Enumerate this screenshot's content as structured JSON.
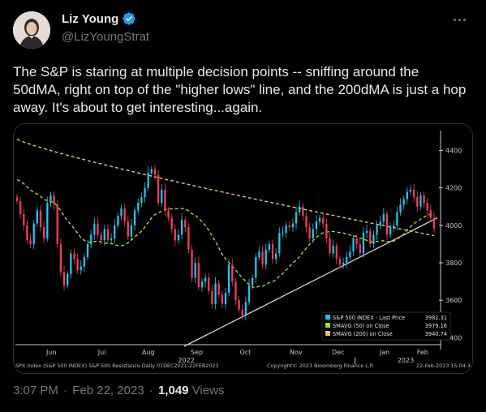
{
  "author": {
    "name": "Liz Young",
    "handle": "@LizYoungStrat"
  },
  "tweet": {
    "text": "The S&P is staring at multiple decision points -- sniffing around the 50dMA, right on top of the \"higher lows\" line, and the 200dMA is just a hop away. It's about to get interesting...again."
  },
  "meta": {
    "time": "3:07 PM",
    "separator": "·",
    "date": "Feb 22, 2023",
    "views_count": "1,049",
    "views_label": "Views"
  },
  "chart_data": {
    "type": "line",
    "x_tick_labels": [
      "Jun",
      "Jul",
      "Aug",
      "Sep",
      "Oct",
      "Nov",
      "Dec",
      "Jan",
      "Feb"
    ],
    "x_year_labels": [
      "2022",
      "2023"
    ],
    "y_tick_labels": [
      "4400",
      "4200",
      "4000",
      "3800",
      "3600",
      "3400"
    ],
    "ylim": [
      3380,
      4480
    ],
    "legend": {
      "rows": [
        {
          "label": "S&P 500 INDEX - Last Price",
          "value": "3982.31",
          "color": "#1ec8f0"
        },
        {
          "label": "SMAVG (50)  on Close",
          "value": "3979.16",
          "color": "#9be02a"
        },
        {
          "label": "SMAVG (200)  on Close",
          "value": "3940.74",
          "color": "#e8c56a"
        }
      ]
    },
    "footer": {
      "left": "SPX Index (S&P 500 INDEX) S&P 500 Resistance  Daily 01DEC2021-22FEB2023",
      "center": "Copyright© 2023 Bloomberg Finance L.P.",
      "right": "22-Feb-2023 15:04:3"
    },
    "series_close": [
      4130,
      4060,
      4000,
      3920,
      3900,
      4010,
      4080,
      3990,
      3930,
      4120,
      4160,
      4110,
      3900,
      3750,
      3680,
      3740,
      3850,
      3820,
      3760,
      3780,
      3830,
      3900,
      3950,
      4010,
      3950,
      3920,
      3980,
      3920,
      3930,
      4000,
      4050,
      4090,
      4020,
      3940,
      4000,
      4080,
      4120,
      4150,
      4200,
      4280,
      4300,
      4270,
      4120,
      4190,
      4080,
      4040,
      3980,
      3920,
      3950,
      4030,
      3990,
      3870,
      3720,
      3800,
      3670,
      3700,
      3720,
      3650,
      3580,
      3690,
      3630,
      3580,
      3640,
      3790,
      3700,
      3600,
      3550,
      3520,
      3590,
      3680,
      3720,
      3830,
      3860,
      3790,
      3870,
      3900,
      3820,
      3850,
      3960,
      3960,
      4000,
      3990,
      4010,
      4070,
      4100,
      4050,
      3990,
      3930,
      3980,
      4020,
      4040,
      4010,
      3930,
      3850,
      3890,
      3820,
      3790,
      3800,
      3830,
      3860,
      3930,
      3900,
      3850,
      3960,
      3970,
      3900,
      3950,
      4000,
      4020,
      4060,
      3950,
      3990,
      4000,
      4070,
      4110,
      4140,
      4180,
      4190,
      4150,
      4100,
      4160,
      4120,
      4080,
      4040,
      3982
    ]
  },
  "colors": {
    "price_up": "#1ec8f0",
    "price_down": "#ff3b5c",
    "sma50": "#9be02a",
    "sma200": "#e8c56a",
    "trendline": "#d8d8d8",
    "axis": "#c8c8c8",
    "verified": "#1d9bf0"
  }
}
